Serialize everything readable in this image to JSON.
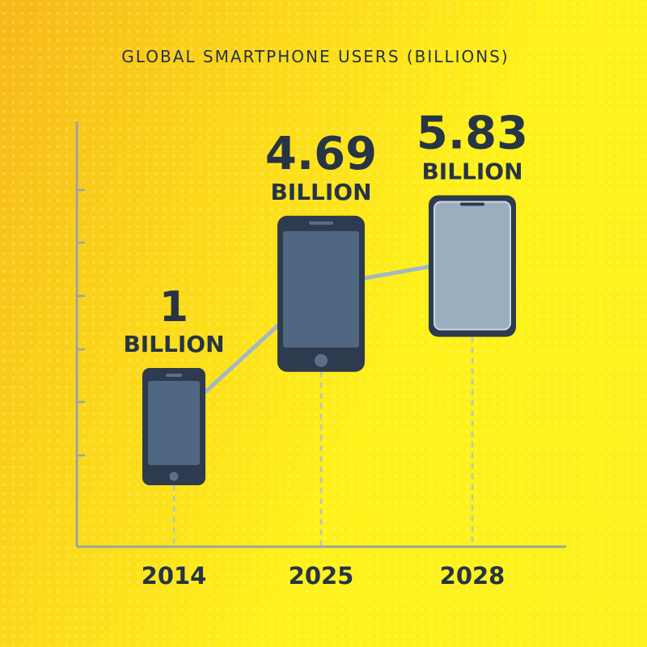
{
  "chart_data": {
    "type": "bar",
    "title": "GLOBAL SMARTPHONE USERS (BILLIONS)",
    "categories": [
      "2014",
      "2025",
      "2028"
    ],
    "values": [
      1,
      4.69,
      5.83
    ],
    "value_labels": [
      "1",
      "4.69",
      "5.83"
    ],
    "unit_label": "BILLION",
    "grid": false,
    "legend": "none"
  },
  "colors": {
    "phone_body": "#2e3a4d",
    "screen": "#4f6780",
    "screen_light": "#9aaec0",
    "trend_line": "#a2b8c4",
    "axis": "#9aa6a0",
    "text": "#263445"
  },
  "icons": [
    "smartphone-icon"
  ]
}
